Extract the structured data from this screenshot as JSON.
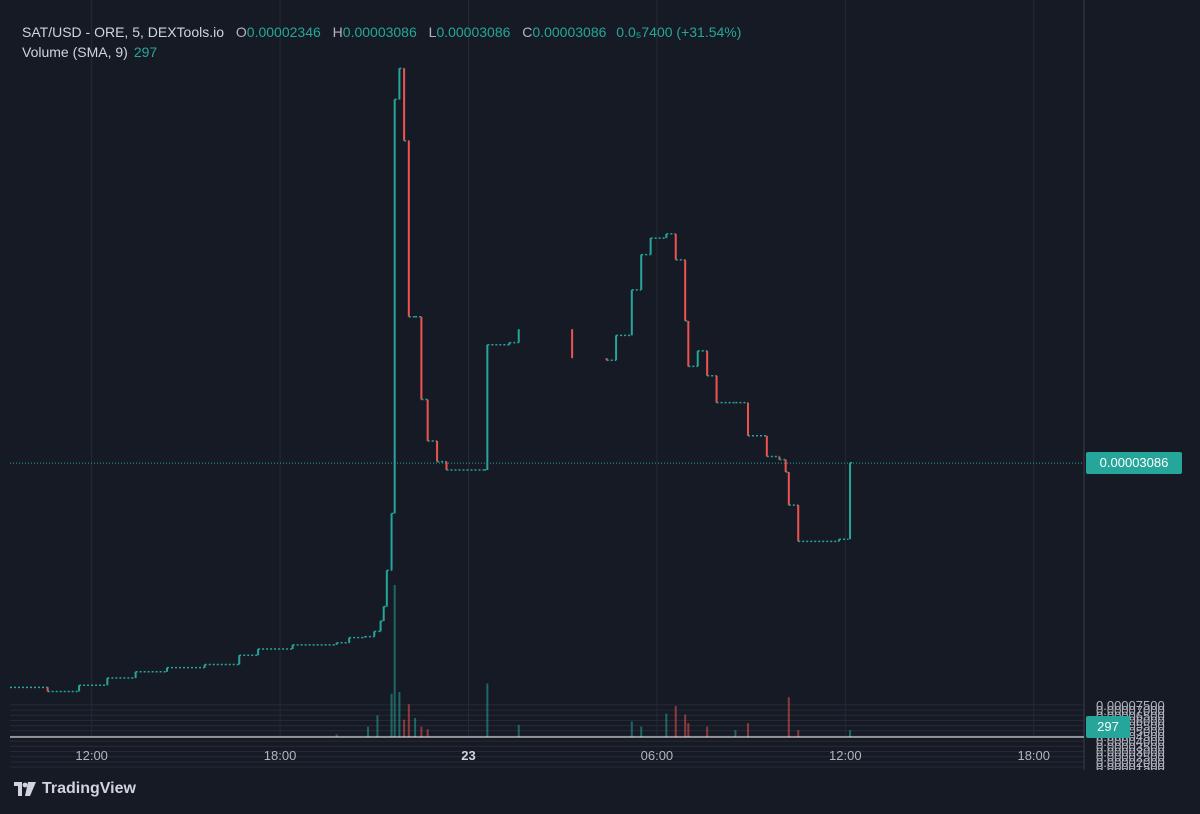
{
  "header": {
    "symbol": "SAT/USD - ORE, 5, DEXTools.io",
    "open_label": "O",
    "open_value": "0.00002346",
    "high_label": "H",
    "high_value": "0.00003086",
    "low_label": "L",
    "low_value": "0.00003086",
    "close_label": "C",
    "close_value": "0.00003086",
    "change": "0.0₅7400 (+31.54%)",
    "volume_label": "Volume (SMA, 9)",
    "volume_value": "297"
  },
  "current_price_label": "0.00003086",
  "current_volume_label": "297",
  "footer": {
    "brand": "TradingView"
  },
  "colors": {
    "background": "#161a25",
    "up": "#26a69a",
    "down": "#ef5350",
    "grid": "#262a36",
    "text": "#b2b5be"
  },
  "chart_data": {
    "type": "candlestick",
    "x_tick_labels": [
      "12:00",
      "18:00",
      "23",
      "06:00",
      "12:00",
      "18:00"
    ],
    "y_tick_labels": [
      "0.00007500",
      "0.00007000",
      "0.00006500",
      "0.00006000",
      "0.00005500",
      "0.00005000",
      "0.00004500",
      "0.00004000",
      "0.00003500",
      "0.00003000",
      "0.00002500",
      "0.00002000",
      "0.00001500",
      "0.00001000",
      "0.0₅5000"
    ],
    "ylim": [
      4.4e-06,
      7.56e-05
    ],
    "x_hours_range": [
      9.4,
      43.6
    ],
    "price_series": [
      [
        9.4,
        9.2e-06
      ],
      [
        10.6,
        8.8e-06
      ],
      [
        11.6,
        9.4e-06
      ],
      [
        12.5,
        1.01e-05
      ],
      [
        13.4,
        1.07e-05
      ],
      [
        14.4,
        1.11e-05
      ],
      [
        15.6,
        1.14e-05
      ],
      [
        16.7,
        1.23e-05
      ],
      [
        17.3,
        1.29e-05
      ],
      [
        18.4,
        1.33e-05
      ],
      [
        19.8,
        1.35e-05
      ],
      [
        20.2,
        1.4e-05
      ],
      [
        20.7,
        1.41e-05
      ],
      [
        21.0,
        1.46e-05
      ],
      [
        21.2,
        1.56e-05
      ],
      [
        21.3,
        1.7e-05
      ],
      [
        21.4,
        2.05e-05
      ],
      [
        21.55,
        2.6e-05
      ],
      [
        21.65,
        6.6e-05
      ],
      [
        21.8,
        6.9e-05
      ],
      [
        21.95,
        6.2e-05
      ],
      [
        22.1,
        4.5e-05
      ],
      [
        22.3,
        4.5e-05
      ],
      [
        22.5,
        3.7e-05
      ],
      [
        22.7,
        3.3e-05
      ],
      [
        23.0,
        3.1e-05
      ],
      [
        23.3,
        3.02e-05
      ],
      [
        24.5,
        3.02e-05
      ],
      [
        24.6,
        4.23e-05
      ],
      [
        25.3,
        4.25e-05
      ],
      [
        25.6,
        4.38e-05
      ],
      [
        27.3,
        4.1e-05
      ],
      [
        28.4,
        4.08e-05
      ],
      [
        28.7,
        4.32e-05
      ],
      [
        29.2,
        4.76e-05
      ],
      [
        29.5,
        5.1e-05
      ],
      [
        29.8,
        5.26e-05
      ],
      [
        30.3,
        5.3e-05
      ],
      [
        30.6,
        5.05e-05
      ],
      [
        30.9,
        4.46e-05
      ],
      [
        31.0,
        4.02e-05
      ],
      [
        31.3,
        4.17e-05
      ],
      [
        31.6,
        3.93e-05
      ],
      [
        31.9,
        3.67e-05
      ],
      [
        32.5,
        3.67e-05
      ],
      [
        32.9,
        3.35e-05
      ],
      [
        33.5,
        3.15e-05
      ],
      [
        33.9,
        3.12e-05
      ],
      [
        34.1,
        3e-05
      ],
      [
        34.2,
        2.68e-05
      ],
      [
        34.5,
        2.33e-05
      ],
      [
        35.8,
        2.35e-05
      ],
      [
        36.1,
        2.35e-05
      ],
      [
        36.15,
        3.09e-05
      ]
    ],
    "volume_series": [
      [
        19.8,
        3
      ],
      [
        20.8,
        12
      ],
      [
        21.1,
        25
      ],
      [
        21.55,
        50
      ],
      [
        21.65,
        176
      ],
      [
        21.8,
        52
      ],
      [
        21.95,
        20
      ],
      [
        22.1,
        38
      ],
      [
        22.3,
        22
      ],
      [
        22.5,
        12
      ],
      [
        22.7,
        9
      ],
      [
        24.6,
        62
      ],
      [
        25.6,
        14
      ],
      [
        29.2,
        18
      ],
      [
        29.5,
        12
      ],
      [
        30.3,
        27
      ],
      [
        30.6,
        36
      ],
      [
        30.9,
        26
      ],
      [
        31.0,
        16
      ],
      [
        31.6,
        12
      ],
      [
        32.5,
        8
      ],
      [
        32.9,
        16
      ],
      [
        34.2,
        46
      ],
      [
        34.5,
        8
      ],
      [
        36.15,
        8
      ]
    ]
  }
}
